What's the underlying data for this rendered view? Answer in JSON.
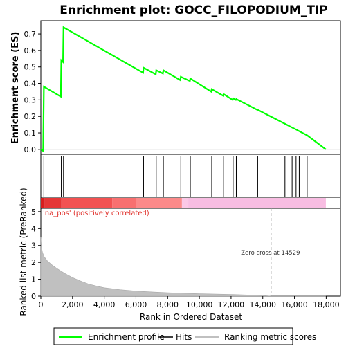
{
  "title": "Enrichment plot: GOCC_FILOPODIUM_TIP",
  "top_panel": {
    "ylabel": "Enrichment score (ES)"
  },
  "bottom_panel": {
    "ylabel": "Ranked list metric (PreRanked)",
    "xlabel": "Rank in Ordered Dataset",
    "pos_label": "'na_pos' (positively correlated)",
    "zero_cross_label": "Zero cross at 14529"
  },
  "legend": {
    "items": [
      {
        "label": "Enrichment profile",
        "color": "#00ff00"
      },
      {
        "label": "Hits",
        "color": "#000000"
      },
      {
        "label": "Ranking metric scores",
        "color": "#c0c0c0"
      }
    ]
  },
  "colors": {
    "es_line": "#00ff00",
    "hits": "#000000",
    "metric_fill": "#c0c0c0",
    "zero_cross": "#a0a0a0",
    "pos_text": "#e0302a"
  },
  "chart_data": [
    {
      "type": "line",
      "series": [
        {
          "name": "Enrichment profile",
          "x": [
            0,
            150,
            190,
            1260,
            1290,
            1400,
            1430,
            6450,
            6480,
            7250,
            7280,
            7700,
            7730,
            8800,
            8830,
            9400,
            9430,
            10750,
            10780,
            11500,
            11530,
            12100,
            12130,
            12300,
            12330,
            13650,
            13680,
            15400,
            15800,
            16150,
            16400,
            16800,
            17980
          ],
          "y": [
            0.0,
            -0.01,
            0.38,
            0.32,
            0.54,
            0.53,
            0.74,
            0.465,
            0.495,
            0.455,
            0.48,
            0.46,
            0.48,
            0.42,
            0.44,
            0.415,
            0.43,
            0.35,
            0.365,
            0.325,
            0.335,
            0.3,
            0.31,
            0.3,
            0.305,
            0.24,
            0.24,
            0.155,
            0.135,
            0.118,
            0.105,
            0.085,
            0.0
          ]
        }
      ],
      "hits_x": [
        190,
        1290,
        1430,
        6480,
        7280,
        7730,
        8830,
        9430,
        10780,
        11530,
        12130,
        12330,
        13680,
        15400,
        15850,
        16100,
        16300,
        16800
      ],
      "xlim": [
        0,
        18900
      ],
      "ylim": [
        -0.03,
        0.78
      ],
      "yticks": [
        0.0,
        0.1,
        0.2,
        0.3,
        0.4,
        0.5,
        0.6,
        0.7
      ],
      "ylabel": "Enrichment score (ES)",
      "grid": false
    },
    {
      "type": "area",
      "series": [
        {
          "name": "Ranking metric scores",
          "x": [
            0,
            30,
            100,
            200,
            400,
            700,
            1000,
            1500,
            2000,
            2500,
            3000,
            3500,
            4000,
            5000,
            6000,
            7000,
            8000,
            9000,
            10000,
            11000,
            12000,
            13000,
            14000,
            14529,
            15000,
            16000,
            17000,
            17980
          ],
          "y": [
            3.5,
            3.0,
            2.6,
            2.35,
            2.1,
            1.85,
            1.65,
            1.35,
            1.1,
            0.9,
            0.72,
            0.6,
            0.5,
            0.38,
            0.3,
            0.25,
            0.2,
            0.17,
            0.14,
            0.12,
            0.1,
            0.07,
            0.04,
            0.0,
            -0.02,
            -0.03,
            -0.04,
            -0.05
          ]
        }
      ],
      "zero_cross": 14529,
      "xlim": [
        0,
        18900
      ],
      "ylim": [
        0,
        5.2
      ],
      "xticks": [
        0,
        2000,
        4000,
        6000,
        8000,
        10000,
        12000,
        14000,
        16000,
        18000
      ],
      "yticks": [
        0,
        1,
        2,
        3,
        4,
        5
      ],
      "xlabel": "Rank in Ordered Dataset",
      "ylabel": "Ranked list metric (PreRanked)",
      "grid": false
    }
  ]
}
